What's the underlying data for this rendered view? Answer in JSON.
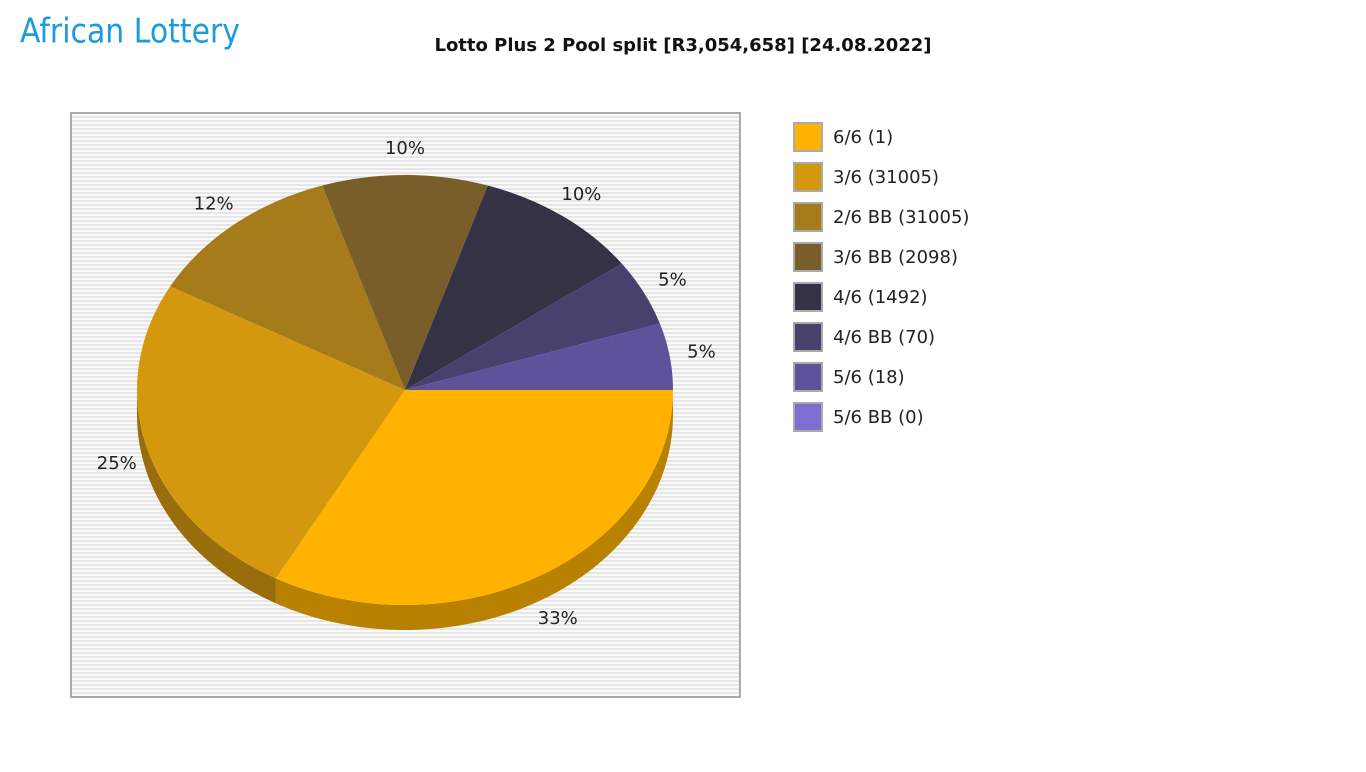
{
  "logo": "African Lottery",
  "chart_data": {
    "type": "pie",
    "title": "Lotto Plus 2 Pool split [R3,054,658] [24.08.2022]",
    "categories": [
      "6/6 (1)",
      "3/6 (31005)",
      "2/6 BB (31005)",
      "3/6 BB (2098)",
      "4/6 (1492)",
      "4/6 BB (70)",
      "5/6 (18)",
      "5/6 BB (0)"
    ],
    "values": [
      33,
      25,
      12,
      10,
      10,
      5,
      5,
      0
    ],
    "value_labels": [
      "33%",
      "25%",
      "12%",
      "10%",
      "10%",
      "5%",
      "5%",
      null
    ],
    "colors": [
      "#ffb300",
      "#d4980f",
      "#a67c1a",
      "#7a5e2a",
      "#363246",
      "#48416e",
      "#5c539a",
      "#7b6fd0"
    ],
    "legend": "right"
  }
}
